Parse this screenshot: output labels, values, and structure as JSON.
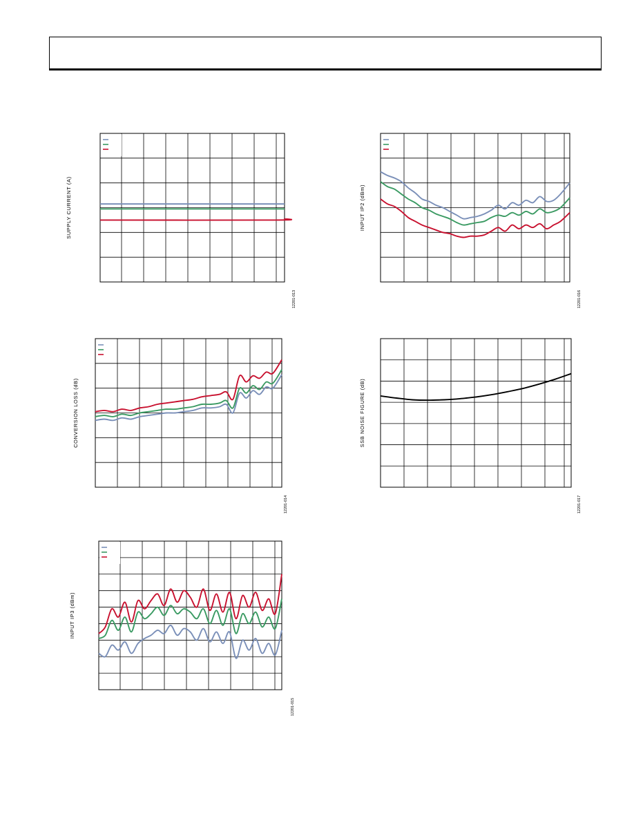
{
  "chart_data": [
    {
      "type": "line",
      "ylabel": "SUPPLY CURRENT (A)",
      "figure_id": "12201-013",
      "xlim": [
        0,
        8.2
      ],
      "ylim": [
        0,
        6
      ],
      "legend": "top-left",
      "series": [
        {
          "color": "#7a8fb8",
          "x": [
            0,
            8.2
          ],
          "y": [
            3.15,
            3.15
          ]
        },
        {
          "color": "#3a9a62",
          "x": [
            0,
            8.2
          ],
          "y": [
            2.95,
            2.95
          ]
        },
        {
          "color": "#c8102e",
          "x": [
            0,
            7.8,
            8.2
          ],
          "y": [
            2.5,
            2.5,
            2.55
          ]
        }
      ]
    },
    {
      "type": "line",
      "ylabel": "INPUT IP2 (dBm)",
      "figure_id": "12201-016",
      "xlim": [
        0,
        8.2
      ],
      "ylim": [
        0,
        6
      ],
      "legend": "top-left",
      "series": [
        {
          "color": "#7a8fb8",
          "x": [
            0,
            0.3,
            0.6,
            0.9,
            1.2,
            1.5,
            1.8,
            2.1,
            2.4,
            2.7,
            3.0,
            3.3,
            3.6,
            3.9,
            4.2,
            4.5,
            4.8,
            5.1,
            5.4,
            5.7,
            6.0,
            6.3,
            6.6,
            6.9,
            7.2,
            7.5,
            7.8,
            8.2
          ],
          "y": [
            4.45,
            4.3,
            4.2,
            4.05,
            3.8,
            3.6,
            3.35,
            3.25,
            3.1,
            3.0,
            2.85,
            2.7,
            2.55,
            2.6,
            2.65,
            2.75,
            2.9,
            3.1,
            2.95,
            3.2,
            3.1,
            3.3,
            3.2,
            3.45,
            3.25,
            3.3,
            3.55,
            4.0
          ]
        },
        {
          "color": "#3a9a62",
          "x": [
            0,
            0.3,
            0.6,
            0.9,
            1.2,
            1.5,
            1.8,
            2.1,
            2.4,
            2.7,
            3.0,
            3.3,
            3.6,
            3.9,
            4.2,
            4.5,
            4.8,
            5.1,
            5.4,
            5.7,
            6.0,
            6.3,
            6.6,
            6.9,
            7.2,
            7.5,
            7.8,
            8.2
          ],
          "y": [
            4.05,
            3.85,
            3.75,
            3.55,
            3.35,
            3.2,
            3.0,
            2.9,
            2.75,
            2.65,
            2.55,
            2.4,
            2.3,
            2.35,
            2.4,
            2.45,
            2.6,
            2.7,
            2.65,
            2.8,
            2.7,
            2.85,
            2.75,
            2.95,
            2.8,
            2.85,
            3.0,
            3.4
          ]
        },
        {
          "color": "#c8102e",
          "x": [
            0,
            0.3,
            0.6,
            0.9,
            1.2,
            1.5,
            1.8,
            2.1,
            2.4,
            2.7,
            3.0,
            3.3,
            3.6,
            3.9,
            4.2,
            4.5,
            4.8,
            5.1,
            5.4,
            5.7,
            6.0,
            6.3,
            6.6,
            6.9,
            7.2,
            7.5,
            7.8,
            8.2
          ],
          "y": [
            3.35,
            3.15,
            3.05,
            2.85,
            2.6,
            2.45,
            2.3,
            2.2,
            2.1,
            2.0,
            1.95,
            1.85,
            1.8,
            1.85,
            1.85,
            1.9,
            2.05,
            2.2,
            2.05,
            2.3,
            2.15,
            2.3,
            2.2,
            2.35,
            2.15,
            2.3,
            2.45,
            2.8
          ]
        }
      ]
    },
    {
      "type": "line",
      "ylabel": "CONVERSION LOSS (dB)",
      "figure_id": "12201-014",
      "xlim": [
        0,
        8.4
      ],
      "ylim": [
        0,
        6
      ],
      "legend": "top-left",
      "series": [
        {
          "color": "#7a8fb8",
          "x": [
            0,
            0.4,
            0.8,
            1.2,
            1.6,
            2.0,
            2.4,
            2.8,
            3.2,
            3.6,
            4.0,
            4.4,
            4.8,
            5.2,
            5.6,
            5.9,
            6.2,
            6.5,
            6.8,
            7.1,
            7.4,
            7.7,
            8.0,
            8.4
          ],
          "y": [
            2.7,
            2.75,
            2.7,
            2.8,
            2.75,
            2.85,
            2.9,
            2.95,
            3.0,
            3.0,
            3.05,
            3.1,
            3.2,
            3.2,
            3.25,
            3.35,
            3.0,
            3.8,
            3.6,
            3.9,
            3.75,
            4.05,
            4.0,
            4.55
          ]
        },
        {
          "color": "#3a9a62",
          "x": [
            0,
            0.4,
            0.8,
            1.2,
            1.6,
            2.0,
            2.4,
            2.8,
            3.2,
            3.6,
            4.0,
            4.4,
            4.8,
            5.2,
            5.6,
            5.9,
            6.2,
            6.5,
            6.8,
            7.1,
            7.4,
            7.7,
            8.0,
            8.4
          ],
          "y": [
            2.85,
            2.9,
            2.85,
            2.95,
            2.9,
            3.0,
            3.05,
            3.1,
            3.15,
            3.15,
            3.2,
            3.25,
            3.35,
            3.35,
            3.4,
            3.5,
            3.2,
            4.0,
            3.8,
            4.1,
            3.95,
            4.25,
            4.2,
            4.75
          ]
        },
        {
          "color": "#c8102e",
          "x": [
            0,
            0.4,
            0.8,
            1.2,
            1.6,
            2.0,
            2.4,
            2.8,
            3.2,
            3.6,
            4.0,
            4.4,
            4.8,
            5.2,
            5.6,
            5.9,
            6.2,
            6.5,
            6.8,
            7.1,
            7.4,
            7.7,
            8.0,
            8.4
          ],
          "y": [
            3.05,
            3.1,
            3.05,
            3.15,
            3.1,
            3.2,
            3.25,
            3.35,
            3.4,
            3.45,
            3.5,
            3.55,
            3.65,
            3.7,
            3.75,
            3.85,
            3.55,
            4.5,
            4.25,
            4.5,
            4.4,
            4.65,
            4.6,
            5.15
          ]
        }
      ]
    },
    {
      "type": "line",
      "ylabel": "SSB NOISE FIGURE (dB)",
      "figure_id": "12201-017",
      "xlim": [
        0,
        8.4
      ],
      "ylim": [
        0,
        7
      ],
      "legend": "none",
      "series": [
        {
          "color": "#000000",
          "x": [
            0,
            0.7,
            1.4,
            2.1,
            2.8,
            3.5,
            4.2,
            4.9,
            5.6,
            6.3,
            7.0,
            7.7,
            8.4
          ],
          "y": [
            4.3,
            4.2,
            4.12,
            4.1,
            4.12,
            4.17,
            4.25,
            4.36,
            4.5,
            4.66,
            4.86,
            5.09,
            5.35
          ]
        }
      ]
    },
    {
      "type": "line",
      "ylabel": "INPUT IP3 (dBm)",
      "figure_id": "12201-015",
      "xlim": [
        0,
        8.4
      ],
      "ylim": [
        0,
        9
      ],
      "legend": "top-left",
      "series": [
        {
          "color": "#7a8fb8",
          "x": [
            0,
            0.3,
            0.6,
            0.9,
            1.2,
            1.5,
            1.8,
            2.1,
            2.4,
            2.7,
            3.0,
            3.3,
            3.6,
            3.9,
            4.2,
            4.5,
            4.8,
            5.1,
            5.4,
            5.7,
            6.0,
            6.3,
            6.6,
            6.9,
            7.2,
            7.5,
            7.8,
            8.1,
            8.4
          ],
          "y": [
            2.2,
            2.0,
            2.7,
            2.4,
            2.9,
            2.2,
            2.8,
            3.1,
            3.3,
            3.6,
            3.4,
            3.9,
            3.3,
            3.7,
            3.5,
            3.0,
            3.7,
            2.9,
            3.5,
            2.8,
            3.5,
            1.9,
            3.0,
            2.4,
            3.1,
            2.2,
            2.8,
            2.1,
            3.6
          ]
        },
        {
          "color": "#3a9a62",
          "x": [
            0,
            0.3,
            0.6,
            0.9,
            1.2,
            1.5,
            1.8,
            2.1,
            2.4,
            2.7,
            3.0,
            3.3,
            3.6,
            3.9,
            4.2,
            4.5,
            4.8,
            5.1,
            5.4,
            5.7,
            6.0,
            6.3,
            6.6,
            6.9,
            7.2,
            7.5,
            7.8,
            8.1,
            8.4
          ],
          "y": [
            3.1,
            3.3,
            4.2,
            3.6,
            4.4,
            3.5,
            4.7,
            4.3,
            4.6,
            5.0,
            4.5,
            5.1,
            4.6,
            4.9,
            4.7,
            4.3,
            4.9,
            4.0,
            4.8,
            3.9,
            4.9,
            3.4,
            4.6,
            4.0,
            4.7,
            3.8,
            4.4,
            3.7,
            5.5
          ]
        },
        {
          "color": "#c8102e",
          "x": [
            0,
            0.3,
            0.6,
            0.9,
            1.2,
            1.5,
            1.8,
            2.1,
            2.4,
            2.7,
            3.0,
            3.3,
            3.6,
            3.9,
            4.2,
            4.5,
            4.8,
            5.1,
            5.4,
            5.7,
            6.0,
            6.3,
            6.6,
            6.9,
            7.2,
            7.5,
            7.8,
            8.1,
            8.4
          ],
          "y": [
            3.4,
            3.8,
            4.9,
            4.4,
            5.3,
            4.1,
            5.4,
            4.9,
            5.4,
            5.8,
            5.1,
            6.1,
            5.3,
            6.0,
            5.6,
            5.0,
            6.1,
            4.8,
            5.8,
            4.7,
            5.9,
            4.3,
            5.7,
            5.0,
            5.9,
            4.8,
            5.5,
            4.6,
            7.0
          ]
        }
      ]
    }
  ]
}
